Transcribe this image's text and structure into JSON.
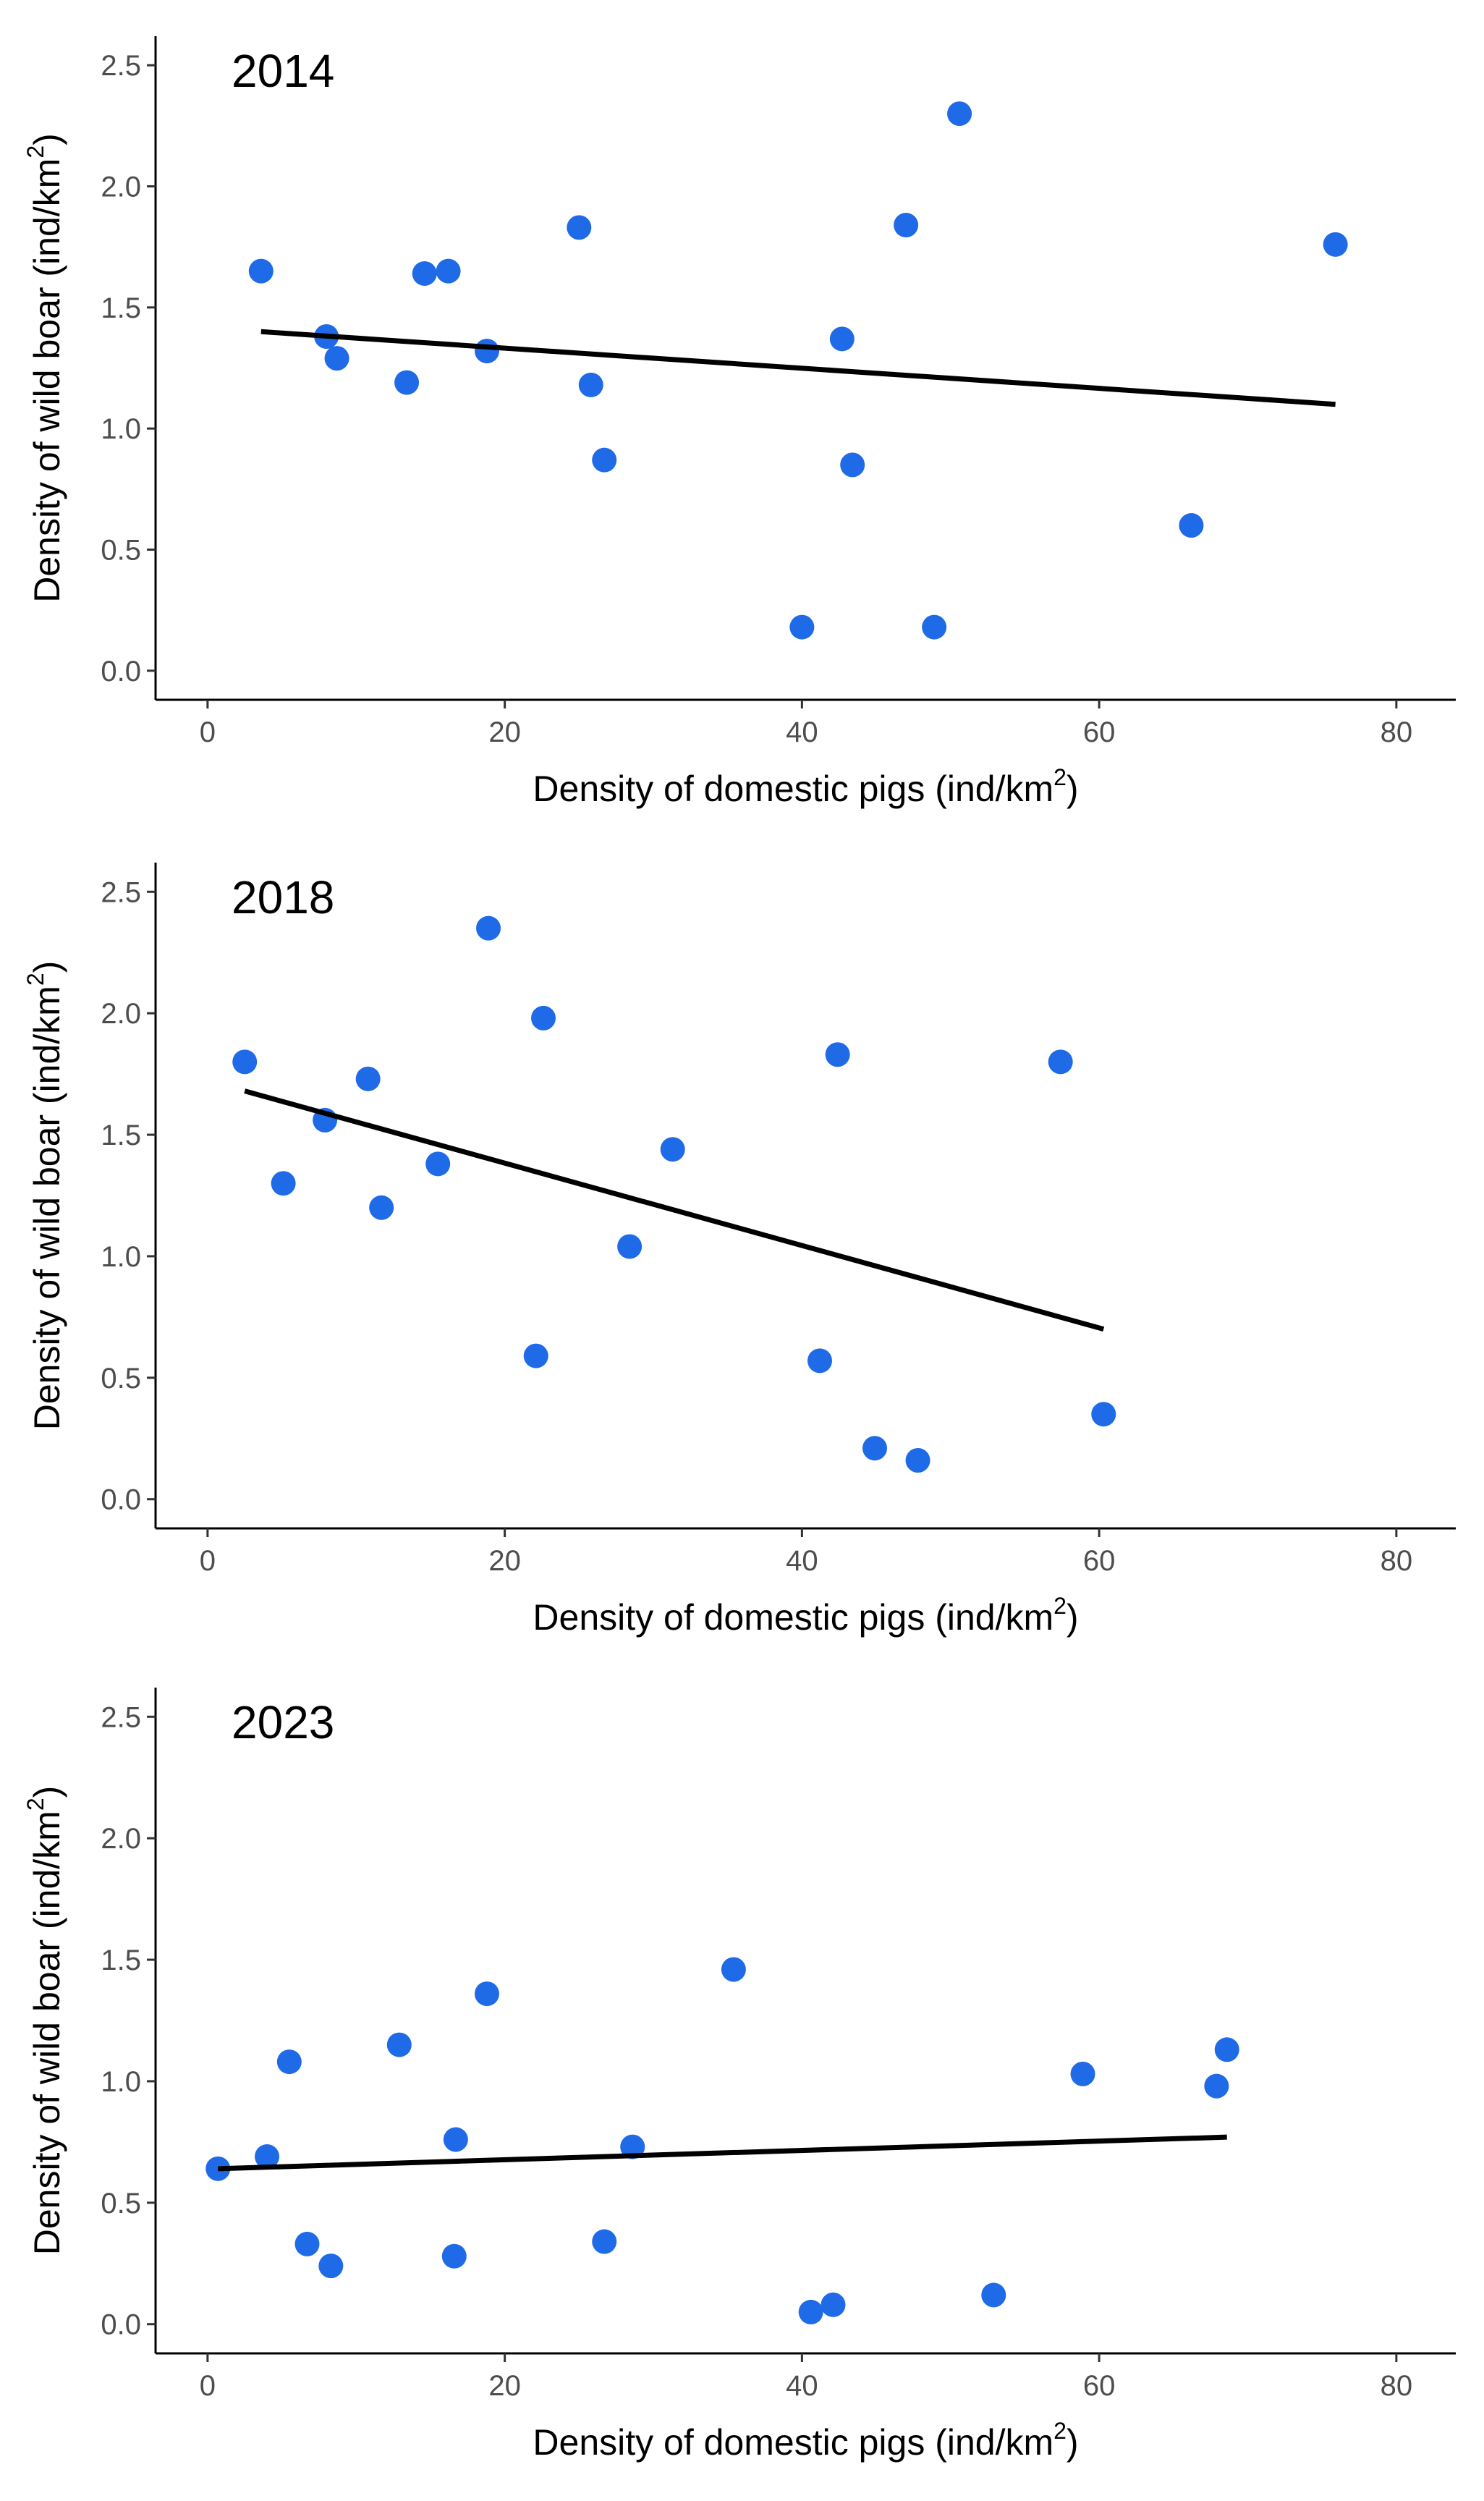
{
  "chart_data": [
    {
      "type": "scatter",
      "title": "2014",
      "xlabel": "Density of domestic pigs (ind/km",
      "xlabel_sup": "2",
      "xlabel_suffix": ")",
      "ylabel": "Density of wild boar (ind/km",
      "ylabel_sup": "2",
      "ylabel_suffix": ")",
      "xlim": [
        -3.5,
        84
      ],
      "ylim": [
        -0.12,
        2.62
      ],
      "x_ticks": [
        0,
        20,
        40,
        60,
        80
      ],
      "x_tick_labels": [
        "0",
        "20",
        "40",
        "60",
        "80"
      ],
      "y_ticks": [
        0,
        0.5,
        1,
        1.5,
        2,
        2.5
      ],
      "y_tick_labels": [
        "0.0",
        "0.5",
        "1.0",
        "1.5",
        "2.0",
        "2.5"
      ],
      "point_color": "#1f6ae6",
      "line_color": "#000000",
      "points": [
        {
          "x": 3.6,
          "y": 1.65
        },
        {
          "x": 8.0,
          "y": 1.38
        },
        {
          "x": 8.7,
          "y": 1.29
        },
        {
          "x": 13.4,
          "y": 1.19
        },
        {
          "x": 14.6,
          "y": 1.64
        },
        {
          "x": 16.2,
          "y": 1.65
        },
        {
          "x": 18.8,
          "y": 1.32
        },
        {
          "x": 25.0,
          "y": 1.83
        },
        {
          "x": 25.8,
          "y": 1.18
        },
        {
          "x": 26.7,
          "y": 0.87
        },
        {
          "x": 40.0,
          "y": 0.18
        },
        {
          "x": 42.7,
          "y": 1.37
        },
        {
          "x": 43.4,
          "y": 0.85
        },
        {
          "x": 47.0,
          "y": 1.84
        },
        {
          "x": 48.9,
          "y": 0.18
        },
        {
          "x": 50.6,
          "y": 2.3
        },
        {
          "x": 66.2,
          "y": 0.6
        },
        {
          "x": 75.9,
          "y": 1.76
        }
      ],
      "trend": {
        "x1": 3.6,
        "y1": 1.4,
        "x2": 75.9,
        "y2": 1.1
      }
    },
    {
      "type": "scatter",
      "title": "2018",
      "xlabel": "Density of domestic pigs (ind/km",
      "xlabel_sup": "2",
      "xlabel_suffix": ")",
      "ylabel": "Density of wild boar (ind/km",
      "ylabel_sup": "2",
      "ylabel_suffix": ")",
      "xlim": [
        -3.5,
        84
      ],
      "ylim": [
        -0.12,
        2.62
      ],
      "x_ticks": [
        0,
        20,
        40,
        60,
        80
      ],
      "x_tick_labels": [
        "0",
        "20",
        "40",
        "60",
        "80"
      ],
      "y_ticks": [
        0,
        0.5,
        1,
        1.5,
        2,
        2.5
      ],
      "y_tick_labels": [
        "0.0",
        "0.5",
        "1.0",
        "1.5",
        "2.0",
        "2.5"
      ],
      "point_color": "#1f6ae6",
      "line_color": "#000000",
      "points": [
        {
          "x": 2.5,
          "y": 1.8
        },
        {
          "x": 5.1,
          "y": 1.3
        },
        {
          "x": 7.9,
          "y": 1.56
        },
        {
          "x": 10.8,
          "y": 1.73
        },
        {
          "x": 11.7,
          "y": 1.2
        },
        {
          "x": 15.5,
          "y": 1.38
        },
        {
          "x": 18.9,
          "y": 2.35
        },
        {
          "x": 22.1,
          "y": 0.59
        },
        {
          "x": 22.6,
          "y": 1.98
        },
        {
          "x": 28.4,
          "y": 1.04
        },
        {
          "x": 31.3,
          "y": 1.44
        },
        {
          "x": 41.2,
          "y": 0.57
        },
        {
          "x": 42.4,
          "y": 1.83
        },
        {
          "x": 44.9,
          "y": 0.21
        },
        {
          "x": 47.8,
          "y": 0.16
        },
        {
          "x": 57.4,
          "y": 1.8
        },
        {
          "x": 60.3,
          "y": 0.35
        }
      ],
      "trend": {
        "x1": 2.5,
        "y1": 1.68,
        "x2": 60.3,
        "y2": 0.7
      }
    },
    {
      "type": "scatter",
      "title": "2023",
      "xlabel": "Density of domestic pigs (ind/km",
      "xlabel_sup": "2",
      "xlabel_suffix": ")",
      "ylabel": "Density of wild boar (ind/km",
      "ylabel_sup": "2",
      "ylabel_suffix": ")",
      "xlim": [
        -3.5,
        84
      ],
      "ylim": [
        -0.12,
        2.62
      ],
      "x_ticks": [
        0,
        20,
        40,
        60,
        80
      ],
      "x_tick_labels": [
        "0",
        "20",
        "40",
        "60",
        "80"
      ],
      "y_ticks": [
        0,
        0.5,
        1,
        1.5,
        2,
        2.5
      ],
      "y_tick_labels": [
        "0.0",
        "0.5",
        "1.0",
        "1.5",
        "2.0",
        "2.5"
      ],
      "point_color": "#1f6ae6",
      "line_color": "#000000",
      "points": [
        {
          "x": 0.7,
          "y": 0.64
        },
        {
          "x": 4.0,
          "y": 0.69
        },
        {
          "x": 5.5,
          "y": 1.08
        },
        {
          "x": 6.7,
          "y": 0.33
        },
        {
          "x": 8.3,
          "y": 0.24
        },
        {
          "x": 12.9,
          "y": 1.15
        },
        {
          "x": 16.7,
          "y": 0.76
        },
        {
          "x": 16.6,
          "y": 0.28
        },
        {
          "x": 18.8,
          "y": 1.36
        },
        {
          "x": 26.7,
          "y": 0.34
        },
        {
          "x": 28.6,
          "y": 0.73
        },
        {
          "x": 35.4,
          "y": 1.46
        },
        {
          "x": 40.6,
          "y": 0.05
        },
        {
          "x": 42.1,
          "y": 0.08
        },
        {
          "x": 52.9,
          "y": 0.12
        },
        {
          "x": 58.9,
          "y": 1.03
        },
        {
          "x": 67.9,
          "y": 0.98
        },
        {
          "x": 68.6,
          "y": 1.13
        }
      ],
      "trend": {
        "x1": 0.7,
        "y1": 0.64,
        "x2": 68.6,
        "y2": 0.77
      }
    }
  ]
}
